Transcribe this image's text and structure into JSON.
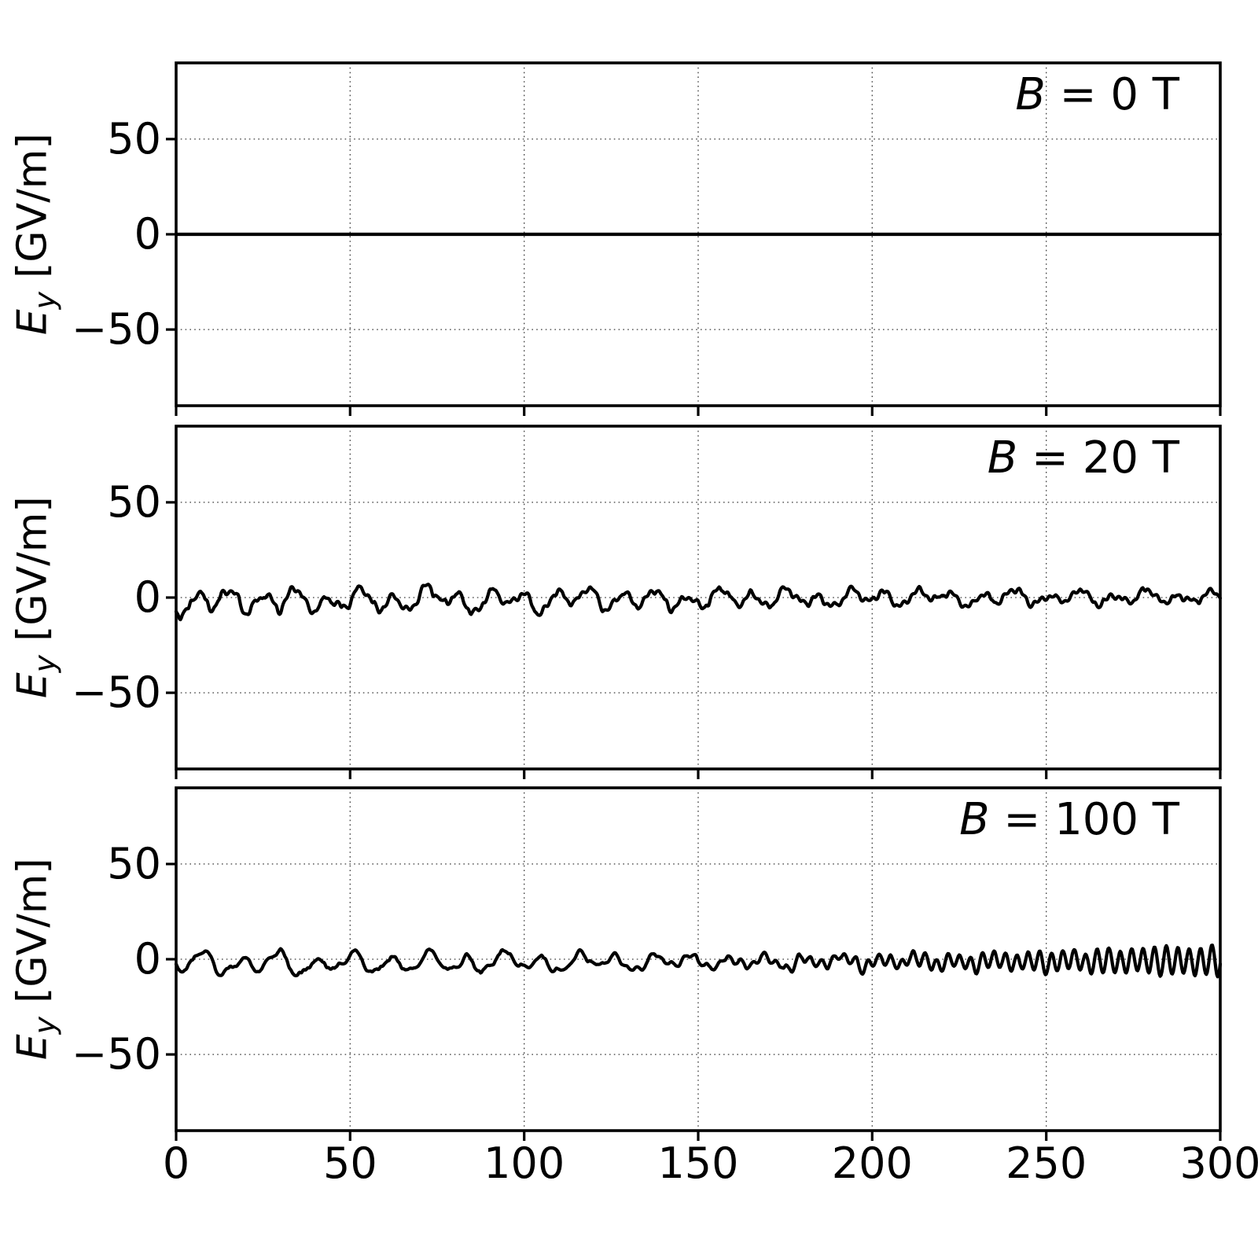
{
  "style": {
    "background": "#ffffff",
    "line_color": "#000000",
    "grid_color": "#3a3a3a",
    "text_color": "#000000"
  },
  "chart_data": {
    "type": "line",
    "title": "",
    "grid": {
      "visible": true,
      "line_style": "dotted"
    },
    "x": {
      "min": 0,
      "max": 300,
      "ticks": [
        0,
        50,
        100,
        150,
        200,
        250,
        300
      ],
      "tick_labels": [
        "0",
        "50",
        "100",
        "150",
        "200",
        "250",
        "300"
      ],
      "label": ""
    },
    "y": {
      "lim": [
        -90,
        90
      ],
      "ticks": [
        50,
        0,
        -50
      ],
      "tick_labels": [
        "50",
        "0",
        "−50"
      ],
      "label_var": "E",
      "label_sub": "y",
      "label_unit": "[GV/m]"
    },
    "panels": [
      {
        "annotation": "B = 0 T",
        "annotation_var": "B",
        "annotation_rest": " = 0 T",
        "magnetic_field_T": 0,
        "signal": {
          "kind": "flat",
          "value": 0
        }
      },
      {
        "annotation": "B = 20 T",
        "annotation_var": "B",
        "annotation_rest": " = 20 T",
        "magnetic_field_T": 20,
        "signal": {
          "kind": "stochastic",
          "seed": 20,
          "sample_step": 0.25,
          "offset": {
            "a": -1.8,
            "b": 0.3,
            "p": 1
          },
          "components": [
            {
              "amp": 4.2,
              "period": 9.4,
              "phase": 3.8,
              "env": {
                "a": 1.25,
                "b": 0.5,
                "p": 1
              }
            },
            {
              "amp": 2.6,
              "period": 20.5,
              "phase": 4.0,
              "env": {
                "a": 1.1,
                "b": 0.45,
                "p": 1
              }
            },
            {
              "amp": 1.7,
              "period": 4.9,
              "phase": 4.2,
              "env": {
                "a": 1.0,
                "b": 0.55,
                "p": 1
              }
            },
            {
              "amp": 0.8,
              "period": 2.2,
              "phase": 1.2,
              "env": {
                "a": 1.0,
                "b": 1.0,
                "p": 1
              }
            }
          ],
          "noise": {
            "slow_amp": 1.6,
            "slow_scale": 3,
            "fast_amp": 0.8,
            "fast_scale": 0.6,
            "env": {
              "a": 1.0,
              "b": 0.55,
              "p": 1
            }
          },
          "approx_peak_amplitude": 10
        }
      },
      {
        "annotation": "B = 100 T",
        "annotation_var": "B",
        "annotation_rest": " = 100 T",
        "magnetic_field_T": 100,
        "signal": {
          "kind": "stochastic",
          "seed": 100,
          "sample_step": 0.25,
          "offset": {
            "a": -2.2,
            "b": -0.8,
            "p": 1
          },
          "components": [
            {
              "amp": 3.6,
              "period": 10.8,
              "phase": 3.3,
              "env": {
                "a": 1.25,
                "b": 0.05,
                "p": 1.2
              }
            },
            {
              "amp": 2.2,
              "period": 23.0,
              "phase": 0.4,
              "env": {
                "a": 1.1,
                "b": 0.0,
                "p": 1
              }
            },
            {
              "amp": 1.5,
              "period": 5.3,
              "phase": 2.8,
              "env": {
                "a": 1.0,
                "b": 0.25,
                "p": 1
              }
            },
            {
              "amp": 8.0,
              "period": 3.3,
              "phase": 0.3,
              "env": {
                "a": 0.02,
                "b": 1.0,
                "p": 2.8
              }
            },
            {
              "amp": 1.2,
              "period": 4.1,
              "phase": 5.0,
              "env": {
                "a": 0.1,
                "b": 0.7,
                "p": 2
              }
            }
          ],
          "noise": {
            "slow_amp": 1.5,
            "slow_scale": 3,
            "fast_amp": 0.7,
            "fast_scale": 0.6,
            "env": {
              "a": 1.0,
              "b": 0.35,
              "p": 1
            }
          },
          "approx_peak_amplitude": 9
        }
      }
    ]
  }
}
